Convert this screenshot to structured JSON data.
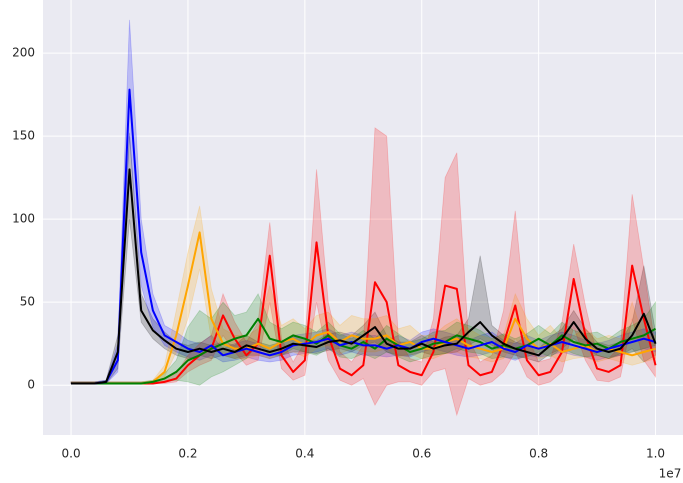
{
  "chart_data": {
    "type": "line",
    "x_offset_label": "1e7",
    "x": [
      0,
      0.02,
      0.04,
      0.06,
      0.08,
      0.1,
      0.12,
      0.14,
      0.16,
      0.18,
      0.2,
      0.22,
      0.24,
      0.26,
      0.28,
      0.3,
      0.32,
      0.34,
      0.36,
      0.38,
      0.4,
      0.42,
      0.44,
      0.46,
      0.48,
      0.5,
      0.52,
      0.54,
      0.56,
      0.58,
      0.6,
      0.62,
      0.64,
      0.66,
      0.68,
      0.7,
      0.72,
      0.74,
      0.76,
      0.78,
      0.8,
      0.82,
      0.84,
      0.86,
      0.88,
      0.9,
      0.92,
      0.94,
      0.96,
      0.98,
      1.0
    ],
    "series": [
      {
        "color": "#000000",
        "values": [
          1,
          1,
          1,
          2,
          20,
          130,
          45,
          33,
          27,
          22,
          20,
          22,
          20,
          22,
          20,
          24,
          22,
          20,
          22,
          25,
          24,
          23,
          26,
          27,
          25,
          30,
          35,
          25,
          22,
          22,
          25,
          22,
          24,
          25,
          32,
          38,
          30,
          25,
          22,
          20,
          18,
          24,
          28,
          38,
          28,
          22,
          20,
          22,
          30,
          43,
          25
        ],
        "lower": [
          1,
          1,
          1,
          1,
          10,
          100,
          38,
          28,
          22,
          18,
          16,
          18,
          16,
          18,
          16,
          18,
          18,
          16,
          18,
          20,
          20,
          19,
          21,
          22,
          20,
          24,
          26,
          20,
          18,
          18,
          20,
          18,
          19,
          20,
          24,
          28,
          24,
          20,
          18,
          16,
          14,
          19,
          22,
          28,
          22,
          18,
          16,
          18,
          22,
          14,
          18
        ],
        "upper": [
          2,
          2,
          2,
          3,
          30,
          152,
          55,
          40,
          32,
          26,
          24,
          26,
          24,
          26,
          24,
          30,
          26,
          24,
          26,
          30,
          28,
          27,
          31,
          32,
          30,
          36,
          44,
          30,
          26,
          26,
          30,
          26,
          29,
          30,
          40,
          78,
          36,
          30,
          26,
          24,
          22,
          29,
          34,
          45,
          34,
          26,
          24,
          26,
          38,
          72,
          32
        ]
      },
      {
        "color": "#0000ff",
        "values": [
          1,
          1,
          1,
          2,
          15,
          178,
          80,
          45,
          30,
          26,
          22,
          20,
          24,
          18,
          20,
          22,
          20,
          18,
          20,
          24,
          25,
          26,
          28,
          24,
          26,
          24,
          24,
          22,
          24,
          22,
          26,
          28,
          26,
          24,
          22,
          24,
          26,
          22,
          20,
          24,
          22,
          24,
          26,
          24,
          22,
          20,
          22,
          24,
          26,
          28,
          26
        ],
        "lower": [
          1,
          1,
          1,
          1,
          8,
          150,
          60,
          35,
          24,
          20,
          17,
          15,
          18,
          14,
          15,
          17,
          15,
          14,
          15,
          18,
          19,
          20,
          22,
          18,
          20,
          18,
          18,
          17,
          18,
          17,
          20,
          22,
          20,
          18,
          17,
          18,
          20,
          17,
          15,
          18,
          17,
          18,
          20,
          18,
          17,
          15,
          17,
          18,
          20,
          22,
          20
        ],
        "upper": [
          2,
          2,
          2,
          3,
          25,
          220,
          100,
          55,
          36,
          32,
          27,
          25,
          30,
          22,
          25,
          27,
          25,
          22,
          25,
          30,
          31,
          32,
          34,
          30,
          32,
          30,
          30,
          27,
          30,
          27,
          32,
          34,
          32,
          30,
          27,
          30,
          32,
          27,
          25,
          30,
          27,
          30,
          32,
          30,
          27,
          25,
          27,
          30,
          32,
          34,
          32
        ]
      },
      {
        "color": "#ffa500",
        "values": [
          1,
          1,
          1,
          1,
          1,
          1,
          1,
          2,
          8,
          30,
          60,
          92,
          40,
          25,
          22,
          22,
          25,
          22,
          26,
          28,
          24,
          30,
          32,
          26,
          30,
          28,
          28,
          30,
          24,
          26,
          22,
          22,
          26,
          28,
          24,
          22,
          20,
          22,
          40,
          28,
          22,
          25,
          20,
          22,
          24,
          20,
          22,
          20,
          18,
          20,
          22
        ],
        "lower": [
          1,
          1,
          1,
          1,
          1,
          1,
          1,
          1,
          5,
          20,
          40,
          70,
          28,
          18,
          16,
          16,
          18,
          16,
          19,
          20,
          17,
          22,
          24,
          19,
          22,
          20,
          20,
          22,
          17,
          19,
          16,
          16,
          19,
          20,
          17,
          16,
          14,
          16,
          28,
          20,
          16,
          18,
          14,
          16,
          17,
          14,
          16,
          14,
          12,
          14,
          16
        ],
        "upper": [
          2,
          2,
          2,
          2,
          2,
          2,
          2,
          3,
          12,
          45,
          80,
          108,
          58,
          34,
          30,
          30,
          34,
          60,
          36,
          40,
          34,
          42,
          44,
          36,
          42,
          40,
          40,
          42,
          34,
          36,
          30,
          30,
          36,
          40,
          34,
          30,
          28,
          30,
          55,
          40,
          30,
          36,
          28,
          30,
          34,
          28,
          30,
          28,
          50,
          28,
          30
        ]
      },
      {
        "color": "#ff0000",
        "values": [
          1,
          1,
          1,
          1,
          1,
          1,
          1,
          1,
          2,
          4,
          12,
          18,
          22,
          42,
          28,
          18,
          25,
          78,
          18,
          8,
          15,
          86,
          30,
          10,
          6,
          12,
          62,
          50,
          12,
          8,
          6,
          20,
          60,
          58,
          12,
          6,
          8,
          25,
          48,
          15,
          6,
          8,
          20,
          64,
          30,
          10,
          8,
          12,
          72,
          40,
          12
        ],
        "lower": [
          1,
          1,
          1,
          1,
          1,
          1,
          1,
          1,
          1,
          2,
          8,
          12,
          15,
          30,
          20,
          12,
          15,
          50,
          10,
          3,
          6,
          50,
          15,
          3,
          0,
          4,
          -12,
          0,
          2,
          2,
          0,
          8,
          10,
          -18,
          4,
          0,
          2,
          8,
          20,
          5,
          0,
          2,
          8,
          35,
          15,
          3,
          2,
          5,
          40,
          15,
          5
        ],
        "upper": [
          2,
          2,
          2,
          2,
          2,
          2,
          2,
          2,
          4,
          7,
          18,
          25,
          30,
          55,
          38,
          26,
          38,
          98,
          28,
          14,
          26,
          130,
          50,
          20,
          14,
          24,
          155,
          150,
          28,
          16,
          14,
          40,
          125,
          140,
          28,
          14,
          18,
          45,
          105,
          30,
          14,
          16,
          38,
          85,
          48,
          18,
          16,
          24,
          115,
          70,
          22
        ]
      },
      {
        "color": "#008000",
        "values": [
          1,
          1,
          1,
          1,
          1,
          1,
          1,
          2,
          4,
          8,
          15,
          18,
          22,
          25,
          28,
          30,
          40,
          28,
          26,
          30,
          28,
          25,
          30,
          24,
          22,
          26,
          22,
          28,
          24,
          20,
          22,
          25,
          26,
          30,
          28,
          26,
          22,
          24,
          22,
          24,
          28,
          24,
          30,
          26,
          24,
          25,
          22,
          26,
          28,
          30,
          34
        ],
        "lower": [
          1,
          1,
          1,
          1,
          1,
          1,
          1,
          1,
          2,
          3,
          2,
          0,
          5,
          8,
          12,
          16,
          25,
          18,
          18,
          22,
          20,
          18,
          22,
          17,
          16,
          19,
          16,
          20,
          17,
          14,
          16,
          18,
          19,
          22,
          20,
          19,
          16,
          17,
          16,
          17,
          20,
          17,
          22,
          19,
          17,
          18,
          16,
          19,
          20,
          22,
          24
        ],
        "upper": [
          2,
          2,
          2,
          2,
          2,
          2,
          2,
          3,
          7,
          15,
          35,
          45,
          40,
          50,
          42,
          44,
          55,
          38,
          34,
          38,
          36,
          32,
          38,
          31,
          28,
          33,
          28,
          36,
          31,
          26,
          28,
          32,
          33,
          38,
          36,
          33,
          28,
          31,
          28,
          31,
          36,
          31,
          38,
          33,
          31,
          32,
          28,
          33,
          36,
          40,
          50
        ]
      }
    ],
    "xlim": [
      -0.048,
      1.047
    ],
    "ylim": [
      -30,
      232
    ],
    "xticks": [
      {
        "value": 0,
        "label": "0.0"
      },
      0.2,
      0.4,
      0.6,
      0.8,
      {
        "value": 1,
        "label": "1.0"
      }
    ],
    "yticks": [
      0,
      50,
      100,
      150,
      200
    ],
    "grid": true,
    "band_opacity": 0.2
  }
}
